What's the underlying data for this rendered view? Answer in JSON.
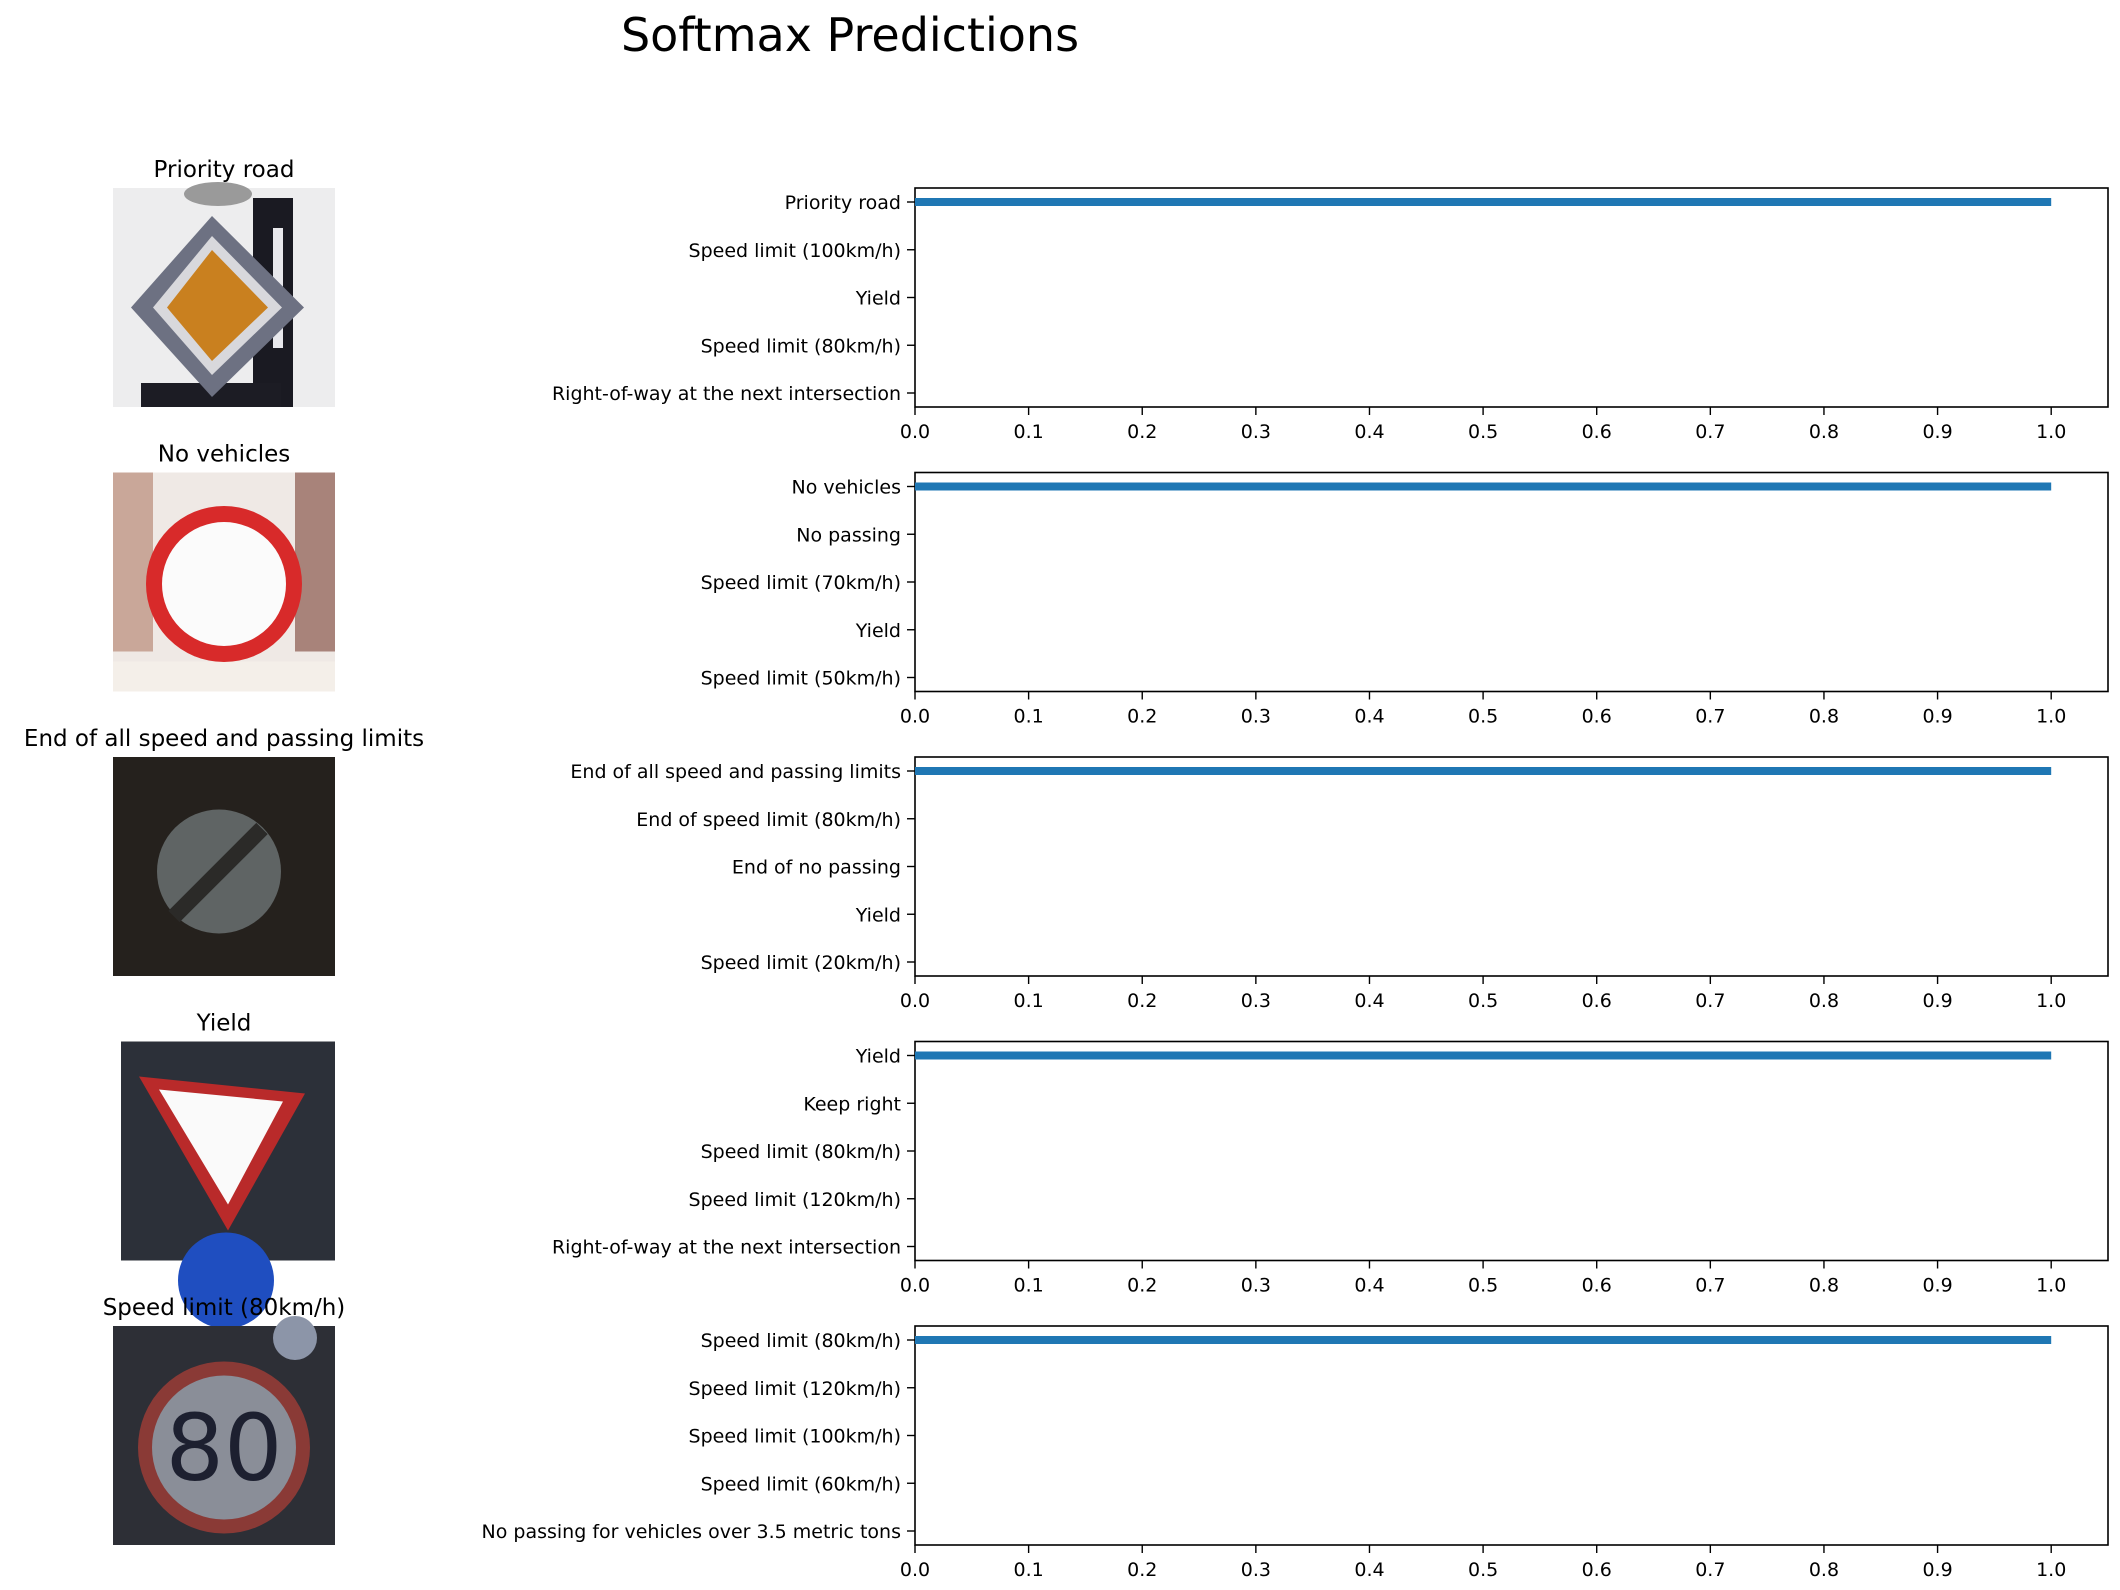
{
  "title": "Softmax Predictions",
  "colors": {
    "bar": "#1f77b4",
    "axis": "#000000",
    "background": "#ffffff"
  },
  "chart_data": [
    {
      "type": "bar",
      "orientation": "horizontal",
      "image_title": "Priority road",
      "image_icon": "priority-road-sign",
      "categories": [
        "Priority road",
        "Speed limit (100km/h)",
        "Yield",
        "Speed limit (80km/h)",
        "Right-of-way at the next intersection"
      ],
      "values": [
        1.0,
        0.0,
        0.0,
        0.0,
        0.0
      ],
      "xlim": [
        0.0,
        1.05
      ],
      "xticks": [
        "0.0",
        "0.1",
        "0.2",
        "0.3",
        "0.4",
        "0.5",
        "0.6",
        "0.7",
        "0.8",
        "0.9",
        "1.0"
      ]
    },
    {
      "type": "bar",
      "orientation": "horizontal",
      "image_title": "No vehicles",
      "image_icon": "no-vehicles-sign",
      "categories": [
        "No vehicles",
        "No passing",
        "Speed limit (70km/h)",
        "Yield",
        "Speed limit (50km/h)"
      ],
      "values": [
        1.0,
        0.0,
        0.0,
        0.0,
        0.0
      ],
      "xlim": [
        0.0,
        1.05
      ],
      "xticks": [
        "0.0",
        "0.1",
        "0.2",
        "0.3",
        "0.4",
        "0.5",
        "0.6",
        "0.7",
        "0.8",
        "0.9",
        "1.0"
      ]
    },
    {
      "type": "bar",
      "orientation": "horizontal",
      "image_title": "End of all speed and passing limits",
      "image_icon": "end-of-limits-sign",
      "categories": [
        "End of all speed and passing limits",
        "End of speed limit (80km/h)",
        "End of no passing",
        "Yield",
        "Speed limit (20km/h)"
      ],
      "values": [
        1.0,
        0.0,
        0.0,
        0.0,
        0.0
      ],
      "xlim": [
        0.0,
        1.05
      ],
      "xticks": [
        "0.0",
        "0.1",
        "0.2",
        "0.3",
        "0.4",
        "0.5",
        "0.6",
        "0.7",
        "0.8",
        "0.9",
        "1.0"
      ]
    },
    {
      "type": "bar",
      "orientation": "horizontal",
      "image_title": "Yield",
      "image_icon": "yield-sign",
      "categories": [
        "Yield",
        "Keep right",
        "Speed limit (80km/h)",
        "Speed limit (120km/h)",
        "Right-of-way at the next intersection"
      ],
      "values": [
        1.0,
        0.0,
        0.0,
        0.0,
        0.0
      ],
      "xlim": [
        0.0,
        1.05
      ],
      "xticks": [
        "0.0",
        "0.1",
        "0.2",
        "0.3",
        "0.4",
        "0.5",
        "0.6",
        "0.7",
        "0.8",
        "0.9",
        "1.0"
      ]
    },
    {
      "type": "bar",
      "orientation": "horizontal",
      "image_title": "Speed limit (80km/h)",
      "image_icon": "speed-limit-80-sign",
      "sign_text": "80",
      "categories": [
        "Speed limit (80km/h)",
        "Speed limit (120km/h)",
        "Speed limit (100km/h)",
        "Speed limit (60km/h)",
        "No passing for vehicles over 3.5 metric tons"
      ],
      "values": [
        1.0,
        0.0,
        0.0,
        0.0,
        0.0
      ],
      "xlim": [
        0.0,
        1.05
      ],
      "xticks": [
        "0.0",
        "0.1",
        "0.2",
        "0.3",
        "0.4",
        "0.5",
        "0.6",
        "0.7",
        "0.8",
        "0.9",
        "1.0"
      ]
    }
  ]
}
